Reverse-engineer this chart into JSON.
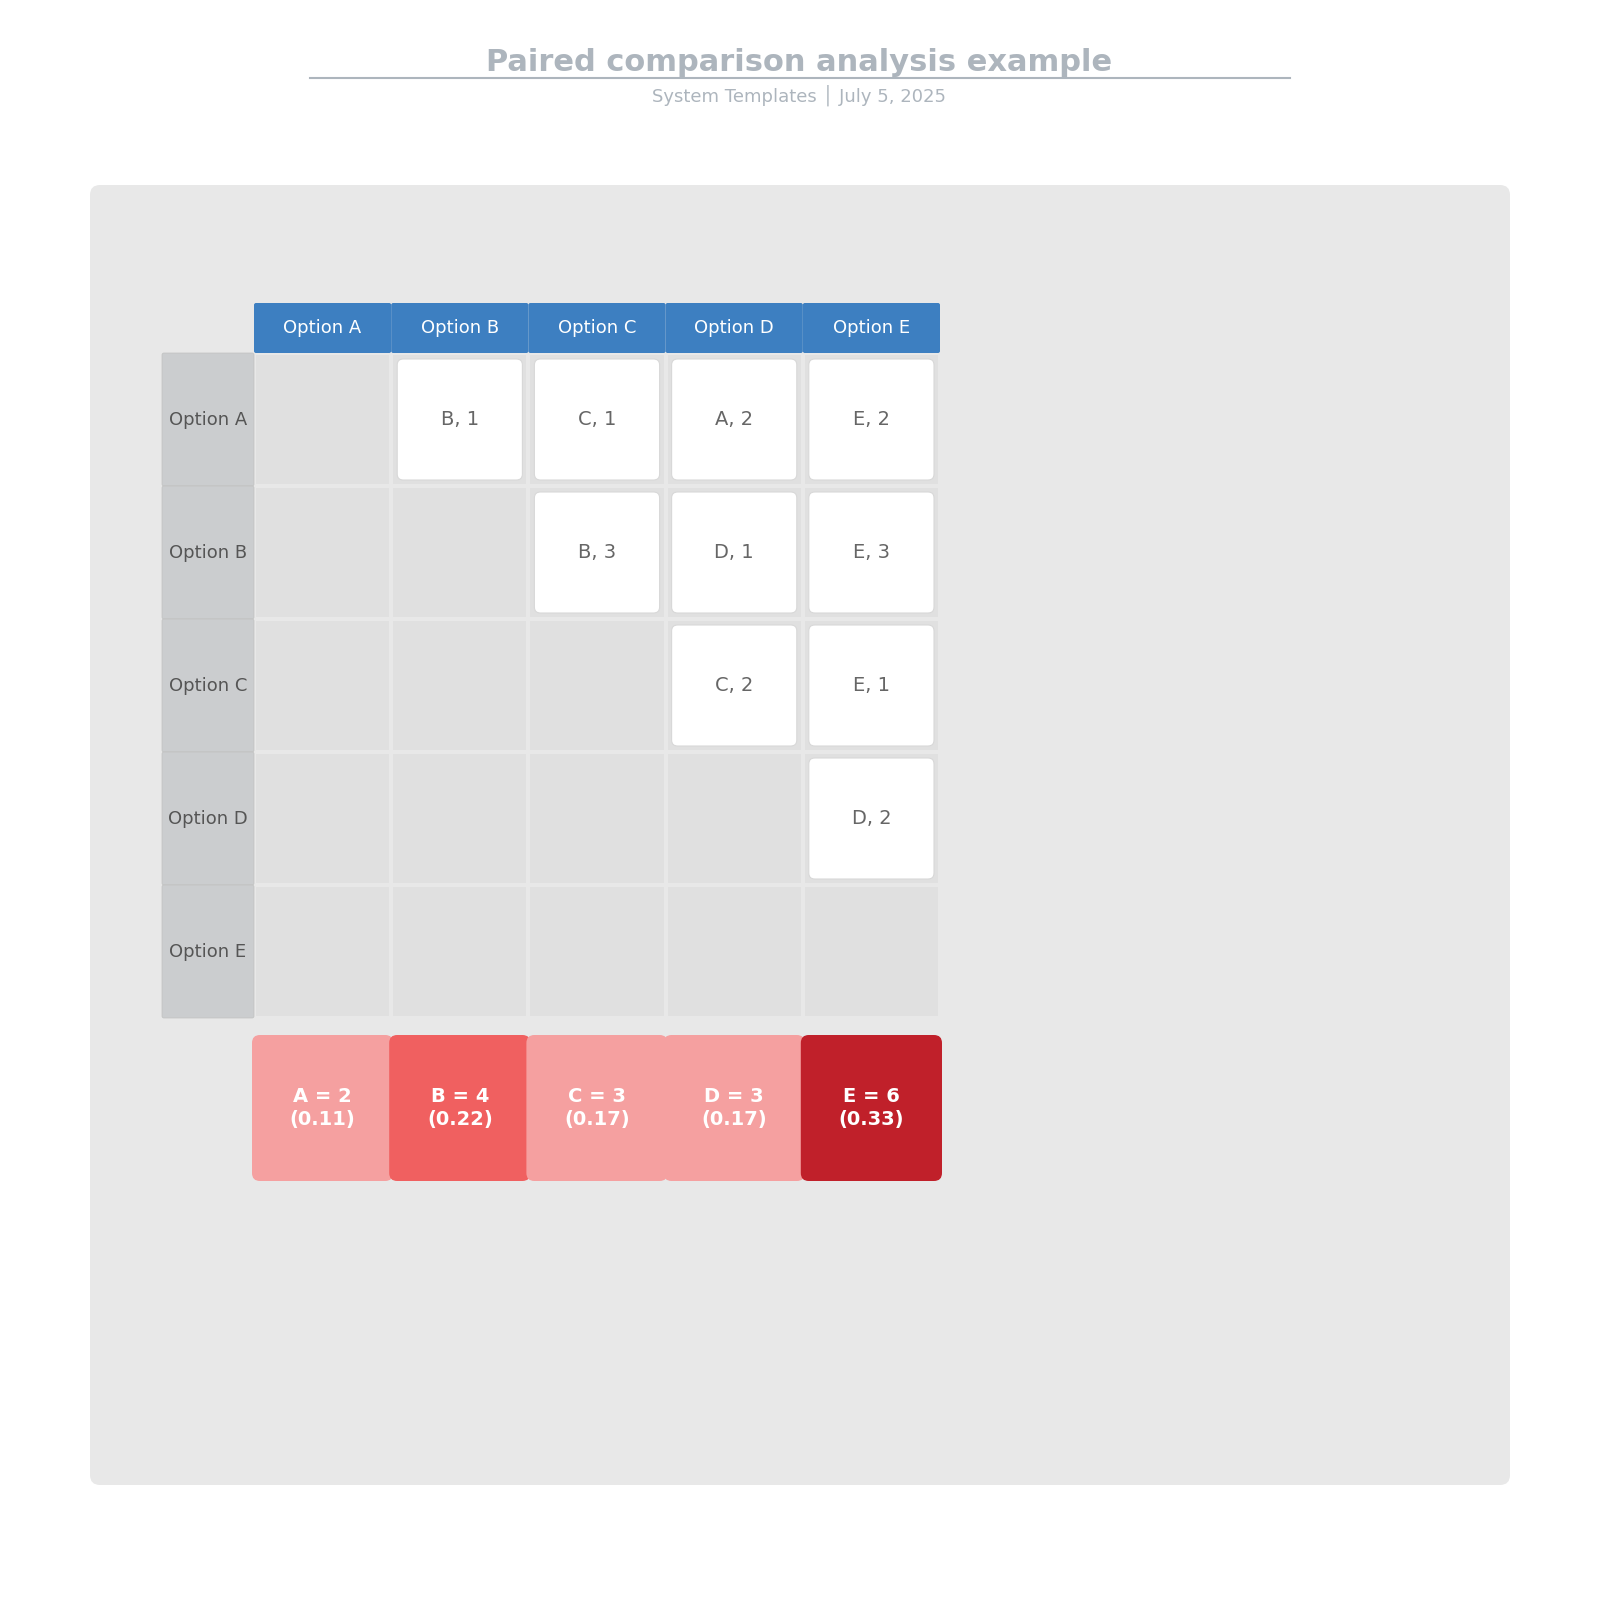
{
  "title": "Paired comparison analysis example",
  "subtitle": "System Templates │ July 5, 2025",
  "title_color": "#adb5bd",
  "subtitle_color": "#adb5bd",
  "options": [
    "Option A",
    "Option B",
    "Option C",
    "Option D",
    "Option E"
  ],
  "header_bg": "#3d7fc1",
  "header_text_color": "#ffffff",
  "row_label_bg_top": "#d0d2d4",
  "row_label_bg_bottom": "#c0c2c4",
  "row_label_text_color": "#555555",
  "outer_bg": "#e8e8e8",
  "cell_bg": "#e0e0e0",
  "card_bg": "#ffffff",
  "card_border": "#d8d8d8",
  "cells": {
    "0,1": "B, 1",
    "0,2": "C, 1",
    "0,3": "A, 2",
    "0,4": "E, 2",
    "1,2": "B, 3",
    "1,3": "D, 1",
    "1,4": "E, 3",
    "2,3": "C, 2",
    "2,4": "E, 1",
    "3,4": "D, 2"
  },
  "score_labels": [
    "A = 2\n(0.11)",
    "B = 4\n(0.22)",
    "C = 3\n(0.17)",
    "D = 3\n(0.17)",
    "E = 6\n(0.33)"
  ],
  "score_colors": [
    "#f5a0a0",
    "#f06060",
    "#f5a0a0",
    "#f5a0a0",
    "#c0202a"
  ]
}
